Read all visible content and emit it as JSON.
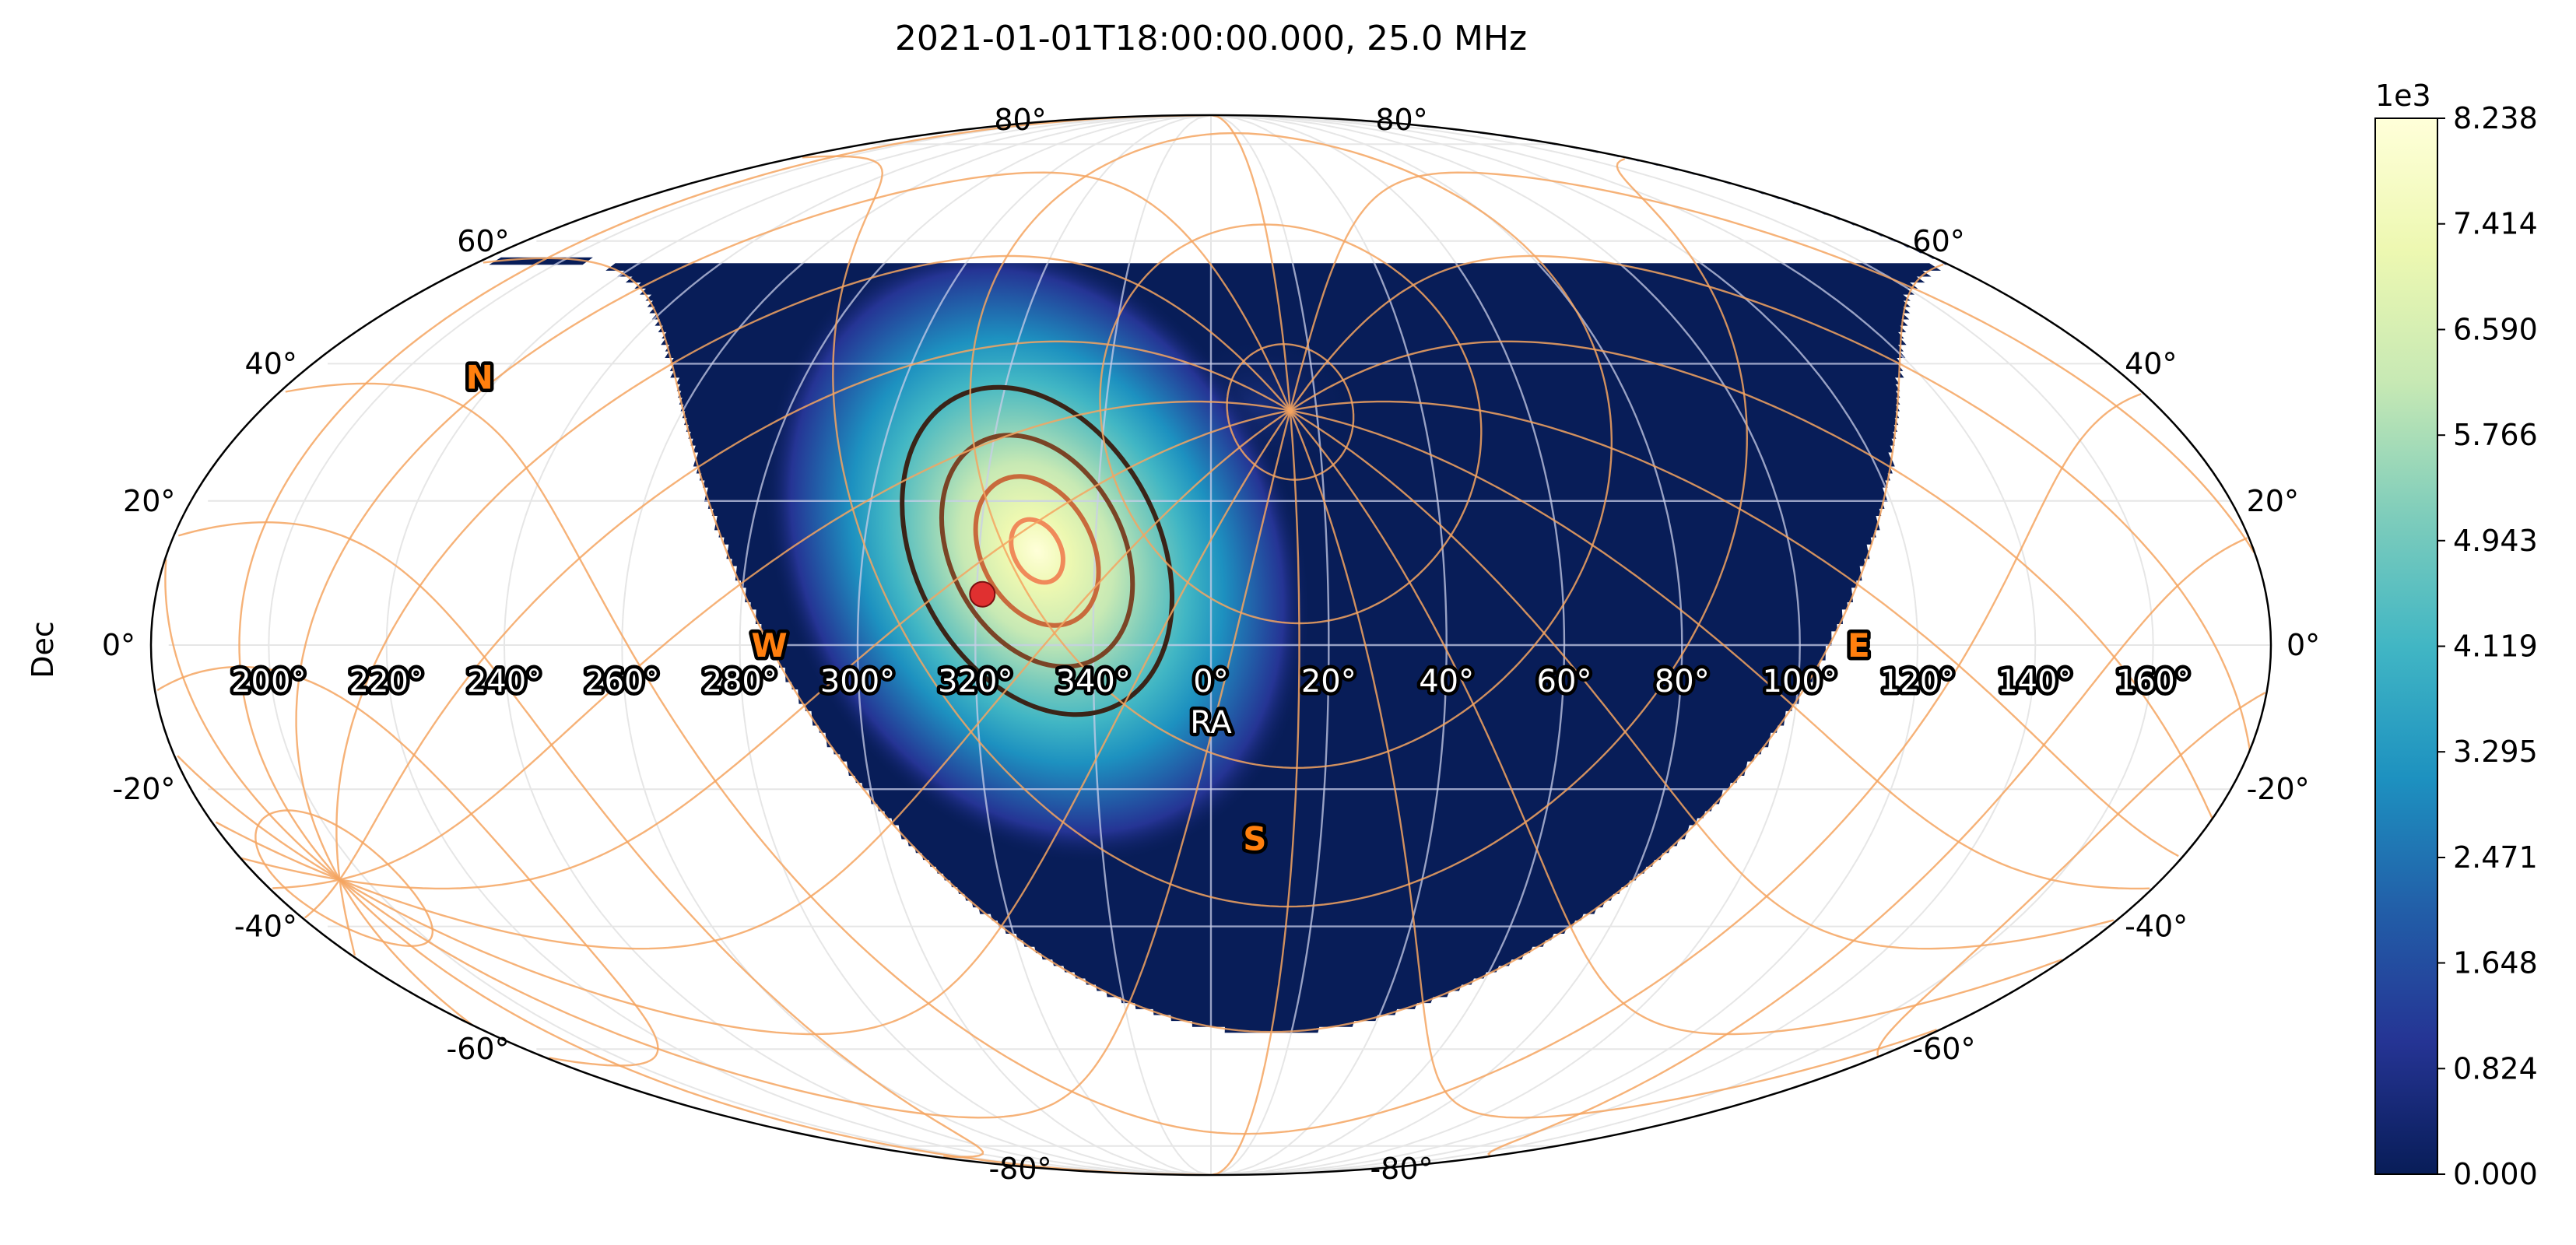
{
  "chart_data": {
    "type": "heatmap",
    "title": "2021-01-01T18:00:00.000, 25.0 MHz",
    "projection": "mollweide",
    "xlabel": "RA",
    "ylabel": "Dec",
    "ra_ticks": [
      "160°",
      "140°",
      "120°",
      "100°",
      "80°",
      "60°",
      "40°",
      "20°",
      "0°",
      "340°",
      "320°",
      "300°",
      "280°",
      "260°",
      "240°",
      "220°",
      "200°"
    ],
    "ra_tick_values": [
      160,
      140,
      120,
      100,
      80,
      60,
      40,
      20,
      0,
      340,
      320,
      300,
      280,
      260,
      240,
      220,
      200
    ],
    "dec_ticks": [
      {
        "dec": 80,
        "label": "80°"
      },
      {
        "dec": 60,
        "label": "60°"
      },
      {
        "dec": 40,
        "label": "40°"
      },
      {
        "dec": 20,
        "label": "20°"
      },
      {
        "dec": 0,
        "label": "0°"
      },
      {
        "dec": -20,
        "label": "-20°"
      },
      {
        "dec": -40,
        "label": "-40°"
      },
      {
        "dec": -60,
        "label": "-60°"
      },
      {
        "dec": -80,
        "label": "-80°"
      }
    ],
    "cardinal_points": [
      {
        "label": "N",
        "ra": 216,
        "dec": 38
      },
      {
        "label": "E",
        "ra": 110,
        "dec": 0
      },
      {
        "label": "W",
        "ra": 285,
        "dec": 0
      },
      {
        "label": "S",
        "ra": 8,
        "dec": -27
      }
    ],
    "zenith": {
      "ra": 15,
      "dec": 33
    },
    "source_marker": {
      "ra": 321,
      "dec": 7,
      "color": "#e03030"
    },
    "beam_peak": {
      "ra": 330,
      "dec": 13
    },
    "contour_levels_fraction": [
      0.25,
      0.5,
      0.75,
      0.95
    ],
    "colorbar": {
      "colormap": "YlGnBu",
      "offset_label": "1e3",
      "min": 0.0,
      "max": 8.238,
      "ticks": [
        "0.000",
        "0.824",
        "1.648",
        "2.471",
        "3.295",
        "4.119",
        "4.943",
        "5.766",
        "6.590",
        "7.414",
        "8.238"
      ]
    },
    "grid": true
  }
}
